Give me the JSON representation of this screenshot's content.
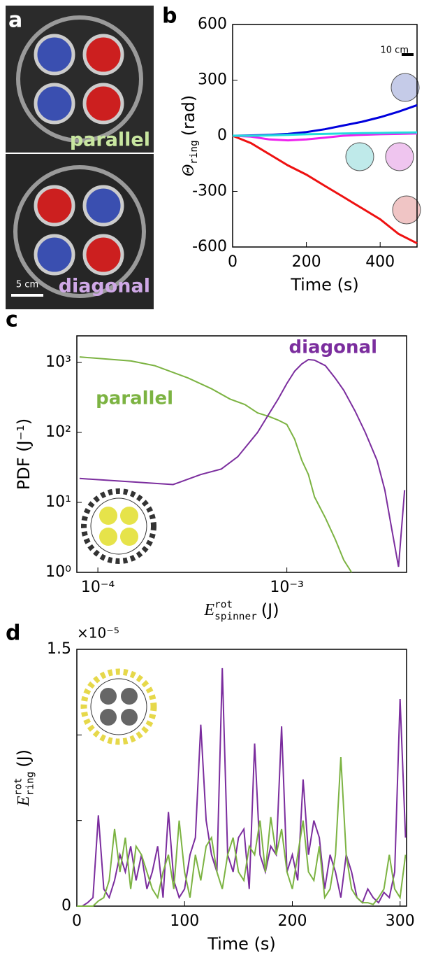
{
  "photo_panel": {
    "label": "a",
    "top_label": "parallel",
    "bottom_label": "diagonal",
    "scale_bar": "5 cm"
  },
  "chart_data": [
    {
      "type": "line",
      "panel_label": "b",
      "xlabel": "Time (s)",
      "ylabel": {
        "text": "Θ",
        "sub": "ring",
        "unit": "(rad)"
      },
      "xlim": [
        0,
        500
      ],
      "ylim": [
        -600,
        600
      ],
      "xticks": [
        0,
        200,
        400
      ],
      "yticks": [
        -600,
        -300,
        0,
        300,
        600
      ],
      "annotations": [
        {
          "text": "10 cm",
          "color": "#000000"
        }
      ],
      "x": [
        0,
        50,
        100,
        150,
        200,
        250,
        300,
        350,
        400,
        450,
        500
      ],
      "series": [
        {
          "color": "#0000dd",
          "values": [
            0,
            2,
            5,
            10,
            20,
            35,
            55,
            75,
            100,
            130,
            165
          ]
        },
        {
          "color": "#ee1111",
          "values": [
            0,
            -40,
            -100,
            -160,
            -210,
            -270,
            -330,
            -390,
            -450,
            -530,
            -580
          ]
        },
        {
          "color": "#ee22ee",
          "values": [
            0,
            -5,
            -20,
            -25,
            -20,
            -10,
            0,
            5,
            8,
            10,
            12
          ]
        },
        {
          "color": "#22dddd",
          "values": [
            0,
            0,
            2,
            5,
            8,
            10,
            12,
            14,
            15,
            17,
            18
          ]
        }
      ]
    },
    {
      "type": "line",
      "panel_label": "c",
      "xscale": "log",
      "yscale": "log",
      "xlabel": {
        "text": "E",
        "sup": "rot",
        "sub": "spinner",
        "unit": "(J)"
      },
      "ylabel": "PDF (J⁻¹)",
      "xlim": [
        7.74e-05,
        0.0043
      ],
      "ylim": [
        1,
        2400
      ],
      "xticks": [
        {
          "value": 0.0001,
          "label": "10⁻⁴"
        },
        {
          "value": 0.001,
          "label": "10⁻³"
        }
      ],
      "yticks": [
        {
          "value": 1,
          "label": "10⁰"
        },
        {
          "value": 10,
          "label": "10¹"
        },
        {
          "value": 100,
          "label": "10²"
        },
        {
          "value": 1000,
          "label": "10³"
        }
      ],
      "annotations": [
        {
          "text": "parallel",
          "color": "#7cb342"
        },
        {
          "text": "diagonal",
          "color": "#7b2d9e"
        }
      ],
      "series": [
        {
          "color": "#7cb342",
          "x": [
            8e-05,
            0.00015,
            0.0002,
            0.0003,
            0.0004,
            0.0005,
            0.0006,
            0.0007,
            0.0008,
            0.0009,
            0.001,
            0.0011,
            0.0012,
            0.0013,
            0.0014,
            0.0016,
            0.0018,
            0.002,
            0.0022
          ],
          "values": [
            1200,
            1050,
            900,
            600,
            420,
            300,
            250,
            190,
            170,
            150,
            130,
            80,
            40,
            25,
            12,
            6,
            3,
            1.5,
            1
          ]
        },
        {
          "color": "#7b2d9e",
          "x": [
            8e-05,
            0.00025,
            0.00035,
            0.00045,
            0.00055,
            0.0007,
            0.0008,
            0.0009,
            0.001,
            0.0011,
            0.0012,
            0.0013,
            0.0014,
            0.0016,
            0.0018,
            0.002,
            0.0023,
            0.0026,
            0.003,
            0.0033,
            0.0036,
            0.0039,
            0.0042
          ],
          "values": [
            22,
            18,
            25,
            30,
            45,
            100,
            180,
            300,
            500,
            750,
            950,
            1100,
            1080,
            900,
            600,
            400,
            200,
            100,
            40,
            15,
            4,
            1.2,
            15
          ]
        }
      ]
    },
    {
      "type": "line",
      "panel_label": "d",
      "xlabel": "Time (s)",
      "ylabel": {
        "text": "E",
        "sup": "rot",
        "sub": "ring",
        "unit": "(J)"
      },
      "multiplier": "×10⁻⁵",
      "xlim": [
        0,
        306
      ],
      "ylim": [
        0,
        1.5
      ],
      "xticks": [
        0,
        100,
        200,
        300
      ],
      "yticks": [
        0,
        1.5
      ],
      "minor_yticks": [
        0.5,
        1.0
      ],
      "x": [
        0,
        5,
        10,
        15,
        20,
        25,
        30,
        35,
        40,
        45,
        50,
        55,
        60,
        65,
        70,
        75,
        80,
        85,
        90,
        95,
        100,
        105,
        110,
        115,
        120,
        125,
        130,
        135,
        140,
        145,
        150,
        155,
        160,
        165,
        170,
        175,
        180,
        185,
        190,
        195,
        200,
        205,
        210,
        215,
        220,
        225,
        230,
        235,
        240,
        245,
        250,
        255,
        260,
        265,
        270,
        275,
        280,
        285,
        290,
        295,
        300,
        305
      ],
      "series": [
        {
          "color": "#7b2d9e",
          "values": [
            0,
            0,
            0.02,
            0.05,
            0.53,
            0.1,
            0.05,
            0.15,
            0.3,
            0.2,
            0.35,
            0.15,
            0.3,
            0.1,
            0.2,
            0.35,
            0.05,
            0.55,
            0.15,
            0.05,
            0.1,
            0.3,
            0.4,
            1.06,
            0.5,
            0.3,
            0.2,
            1.39,
            0.3,
            0.2,
            0.4,
            0.45,
            0.1,
            0.95,
            0.3,
            0.2,
            0.35,
            0.3,
            1.05,
            0.2,
            0.3,
            0.15,
            0.74,
            0.3,
            0.5,
            0.4,
            0.1,
            0.3,
            0.2,
            0.05,
            0.3,
            0.2,
            0.05,
            0.02,
            0.1,
            0.05,
            0.02,
            0.08,
            0.05,
            0.2,
            1.21,
            0.4
          ]
        },
        {
          "color": "#7cb342",
          "values": [
            0,
            0,
            0,
            0,
            0.03,
            0.05,
            0.15,
            0.45,
            0.2,
            0.4,
            0.1,
            0.35,
            0.3,
            0.2,
            0.1,
            0.05,
            0.2,
            0.3,
            0.1,
            0.5,
            0.2,
            0.05,
            0.3,
            0.15,
            0.35,
            0.4,
            0.2,
            0.1,
            0.3,
            0.4,
            0.2,
            0.15,
            0.35,
            0.3,
            0.5,
            0.2,
            0.52,
            0.3,
            0.45,
            0.2,
            0.1,
            0.3,
            0.5,
            0.2,
            0.15,
            0.35,
            0.05,
            0.1,
            0.3,
            0.87,
            0.3,
            0.1,
            0.05,
            0.02,
            0.02,
            0.01,
            0.05,
            0.1,
            0.3,
            0.1,
            0.05,
            0.3
          ]
        }
      ]
    }
  ]
}
